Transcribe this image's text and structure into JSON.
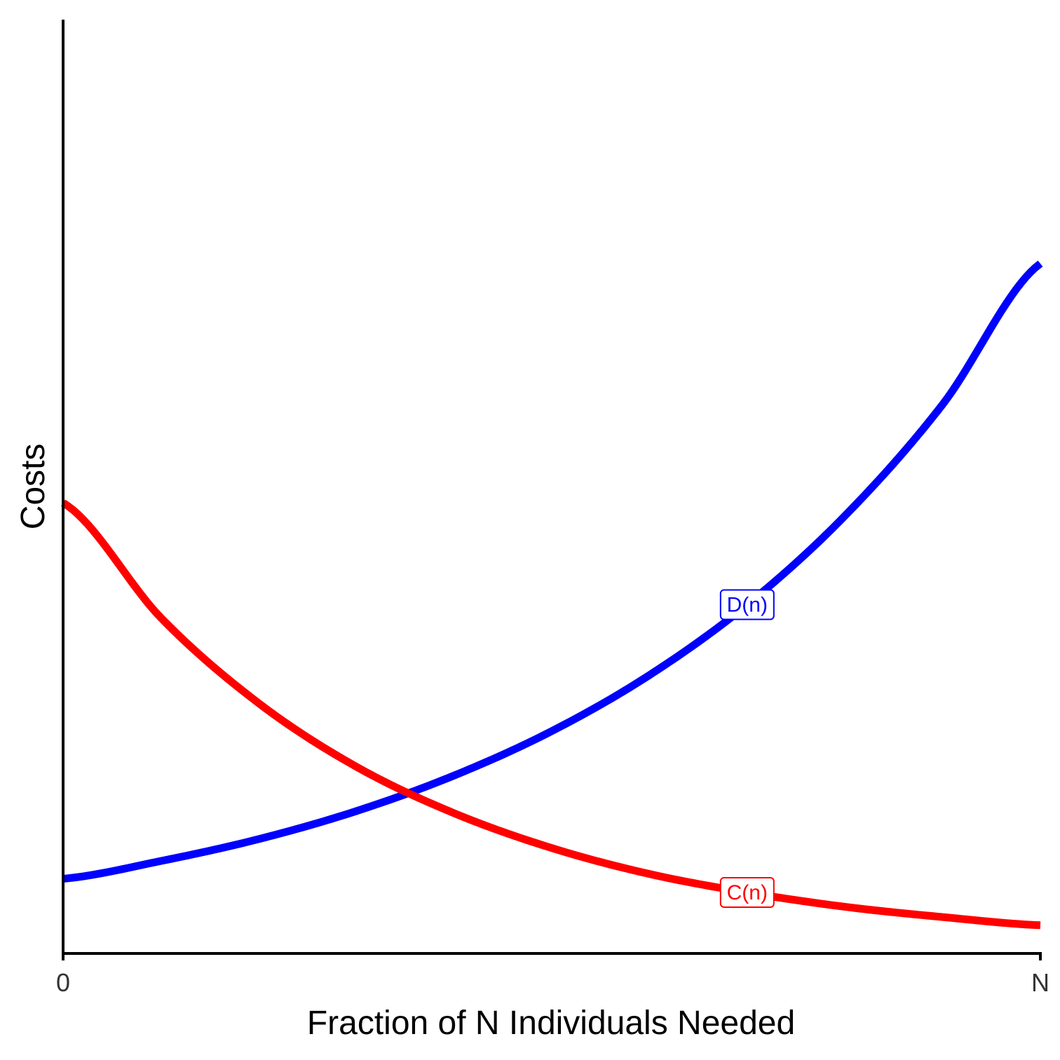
{
  "chart_data": {
    "type": "line",
    "xlabel": "Fraction of N Individuals Needed",
    "ylabel": "Costs",
    "x_ticks": [
      "0",
      "N"
    ],
    "xlim": [
      0,
      1
    ],
    "ylim": [
      0,
      1
    ],
    "grid": false,
    "legend": "none",
    "series": [
      {
        "name": "D(n)",
        "color": "#0000ff",
        "x": [
          0,
          0.1,
          0.2,
          0.3,
          0.4,
          0.5,
          0.6,
          0.7,
          0.8,
          0.9,
          1.0
        ],
        "y": [
          0.1,
          0.126,
          0.158,
          0.199,
          0.251,
          0.316,
          0.398,
          0.501,
          0.631,
          0.794,
          1.0
        ],
        "label_at_x": 0.7
      },
      {
        "name": "C(n)",
        "color": "#ff0000",
        "x": [
          0,
          0.1,
          0.2,
          0.3,
          0.4,
          0.5,
          0.6,
          0.7,
          0.8,
          0.9,
          1.0
        ],
        "y": [
          0.65,
          0.482,
          0.357,
          0.264,
          0.196,
          0.145,
          0.107,
          0.08,
          0.059,
          0.044,
          0.032
        ],
        "label_at_x": 0.7
      }
    ]
  }
}
